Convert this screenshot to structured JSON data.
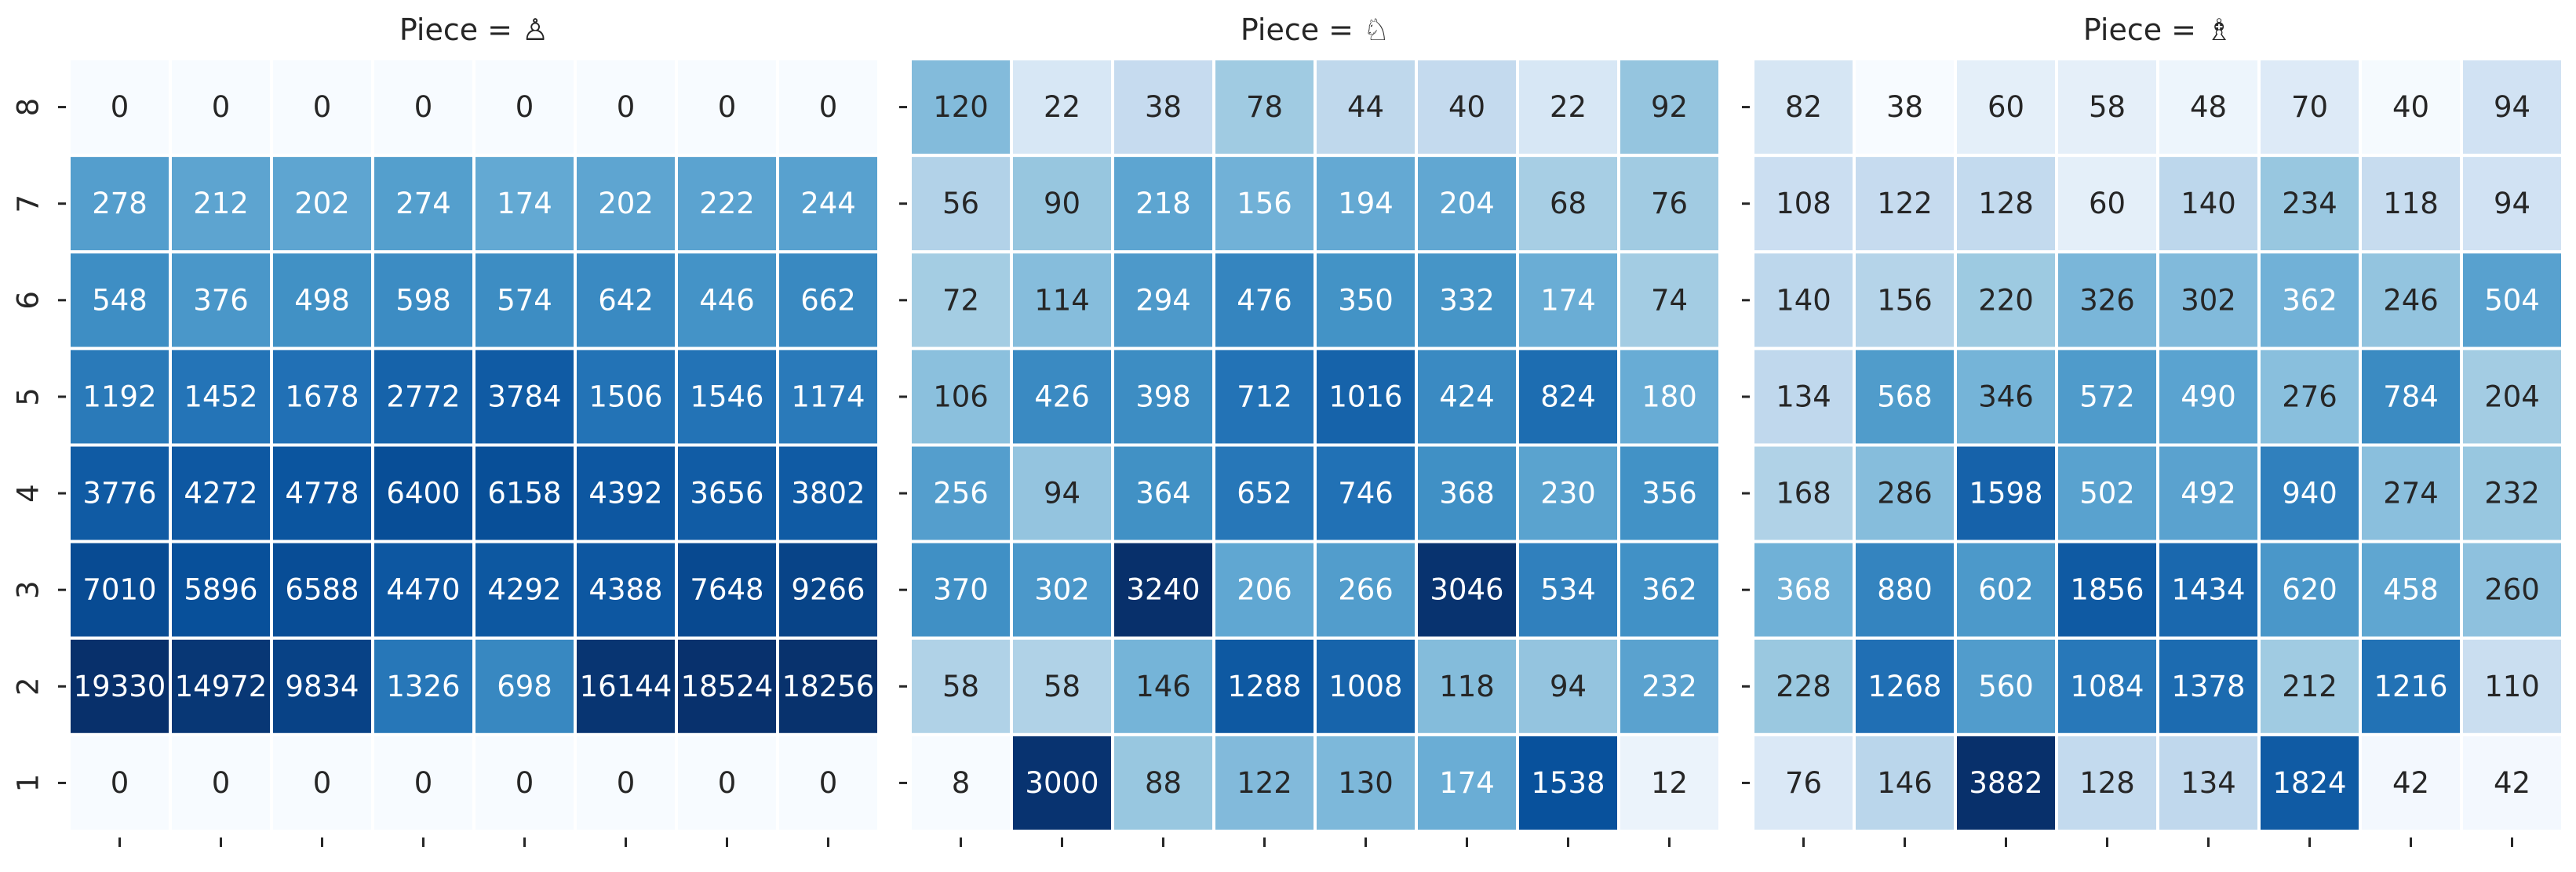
{
  "chart_data": [
    {
      "type": "heatmap",
      "title": "Piece = ♙",
      "color_scale": "log",
      "colormap": [
        "#f7fbff",
        "#deebf7",
        "#c6dbef",
        "#9ecae1",
        "#6baed6",
        "#4292c6",
        "#2171b5",
        "#08519c",
        "#08306b"
      ],
      "rows": [
        "8",
        "7",
        "6",
        "5",
        "4",
        "3",
        "2",
        "1"
      ],
      "x": [
        null,
        null,
        null,
        null,
        null,
        null,
        null,
        null
      ],
      "values": [
        [
          0,
          0,
          0,
          0,
          0,
          0,
          0,
          0
        ],
        [
          278,
          212,
          202,
          274,
          174,
          202,
          222,
          244
        ],
        [
          548,
          376,
          498,
          598,
          574,
          642,
          446,
          662
        ],
        [
          1192,
          1452,
          1678,
          2772,
          3784,
          1506,
          1546,
          1174
        ],
        [
          3776,
          4272,
          4778,
          6400,
          6158,
          4392,
          3656,
          3802
        ],
        [
          7010,
          5896,
          6588,
          4470,
          4292,
          4388,
          7648,
          9266
        ],
        [
          19330,
          14972,
          9834,
          1326,
          698,
          16144,
          18524,
          18256
        ],
        [
          0,
          0,
          0,
          0,
          0,
          0,
          0,
          0
        ]
      ]
    },
    {
      "type": "heatmap",
      "title": "Piece = ♘",
      "color_scale": "log",
      "colormap": [
        "#f7fbff",
        "#deebf7",
        "#c6dbef",
        "#9ecae1",
        "#6baed6",
        "#4292c6",
        "#2171b5",
        "#08519c",
        "#08306b"
      ],
      "rows": [
        null,
        null,
        null,
        null,
        null,
        null,
        null,
        null
      ],
      "x": [
        null,
        null,
        null,
        null,
        null,
        null,
        null,
        null
      ],
      "values": [
        [
          120,
          22,
          38,
          78,
          44,
          40,
          22,
          92
        ],
        [
          56,
          90,
          218,
          156,
          194,
          204,
          68,
          76
        ],
        [
          72,
          114,
          294,
          476,
          350,
          332,
          174,
          74
        ],
        [
          106,
          426,
          398,
          712,
          1016,
          424,
          824,
          180
        ],
        [
          256,
          94,
          364,
          652,
          746,
          368,
          230,
          356
        ],
        [
          370,
          302,
          3240,
          206,
          266,
          3046,
          534,
          362
        ],
        [
          58,
          58,
          146,
          1288,
          1008,
          118,
          94,
          232
        ],
        [
          8,
          3000,
          88,
          122,
          130,
          174,
          1538,
          12
        ]
      ]
    },
    {
      "type": "heatmap",
      "title": "Piece = ♗",
      "color_scale": "log",
      "colormap": [
        "#f7fbff",
        "#deebf7",
        "#c6dbef",
        "#9ecae1",
        "#6baed6",
        "#4292c6",
        "#2171b5",
        "#08519c",
        "#08306b"
      ],
      "rows": [
        null,
        null,
        null,
        null,
        null,
        null,
        null,
        null
      ],
      "x": [
        null,
        null,
        null,
        null,
        null,
        null,
        null,
        null
      ],
      "values": [
        [
          82,
          38,
          60,
          58,
          48,
          70,
          40,
          94
        ],
        [
          108,
          122,
          128,
          60,
          140,
          234,
          118,
          94
        ],
        [
          140,
          156,
          220,
          326,
          302,
          362,
          246,
          504
        ],
        [
          134,
          568,
          346,
          572,
          490,
          276,
          784,
          204
        ],
        [
          168,
          286,
          1598,
          502,
          492,
          940,
          274,
          232
        ],
        [
          368,
          880,
          602,
          1856,
          1434,
          620,
          458,
          260
        ],
        [
          228,
          1268,
          560,
          1084,
          1378,
          212,
          1216,
          110
        ],
        [
          76,
          146,
          3882,
          128,
          134,
          1824,
          42,
          42
        ]
      ]
    }
  ]
}
